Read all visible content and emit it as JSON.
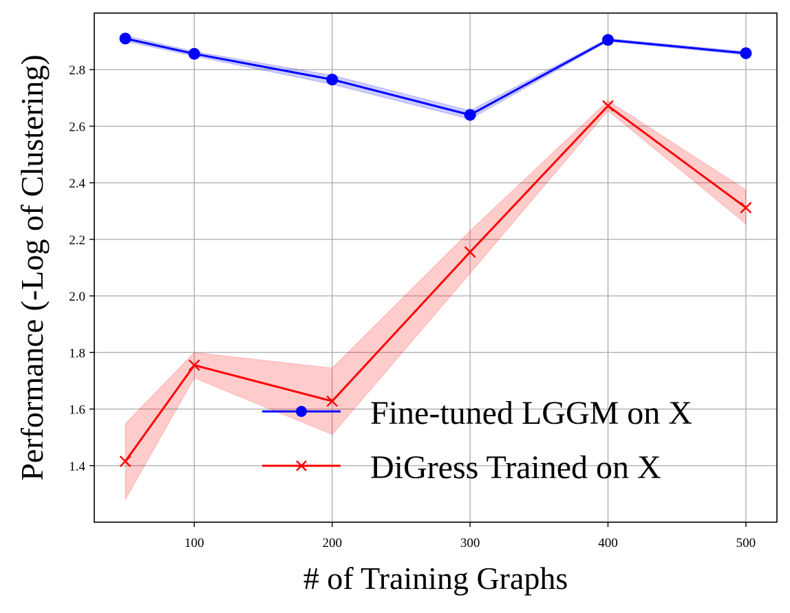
{
  "chart_data": {
    "type": "line",
    "title": "",
    "xlabel": "# of Training Graphs",
    "ylabel": "Performance (-Log of Clustering)",
    "x": [
      50,
      100,
      200,
      300,
      400,
      500
    ],
    "xlim": [
      27.5,
      522.5
    ],
    "ylim": [
      1.2,
      3.0
    ],
    "xticks": [
      100,
      200,
      300,
      400,
      500
    ],
    "yticks": [
      1.4,
      1.6,
      1.8,
      2.0,
      2.2,
      2.4,
      2.6,
      2.8
    ],
    "xtick_labels": [
      "100",
      "200",
      "300",
      "400",
      "500"
    ],
    "ytick_labels": [
      "1.4",
      "1.6",
      "1.8",
      "2.0",
      "2.2",
      "2.4",
      "2.6",
      "2.8"
    ],
    "grid": true,
    "legend_position": "lower-right",
    "series": [
      {
        "name": "Fine-tuned LGGM on X",
        "color": "#0000ff",
        "marker": "circle",
        "values": [
          2.91,
          2.856,
          2.765,
          2.64,
          2.905,
          2.858
        ],
        "lower": [
          2.9,
          2.848,
          2.748,
          2.625,
          2.9,
          2.852
        ],
        "upper": [
          2.92,
          2.864,
          2.78,
          2.655,
          2.91,
          2.864
        ]
      },
      {
        "name": "DiGress Trained on X",
        "color": "#ff0000",
        "marker": "x",
        "values": [
          1.415,
          1.755,
          1.628,
          2.155,
          2.672,
          2.312
        ],
        "lower": [
          1.28,
          1.71,
          1.51,
          2.08,
          2.655,
          2.255
        ],
        "upper": [
          1.548,
          1.8,
          1.745,
          2.23,
          2.69,
          2.375
        ]
      }
    ]
  }
}
